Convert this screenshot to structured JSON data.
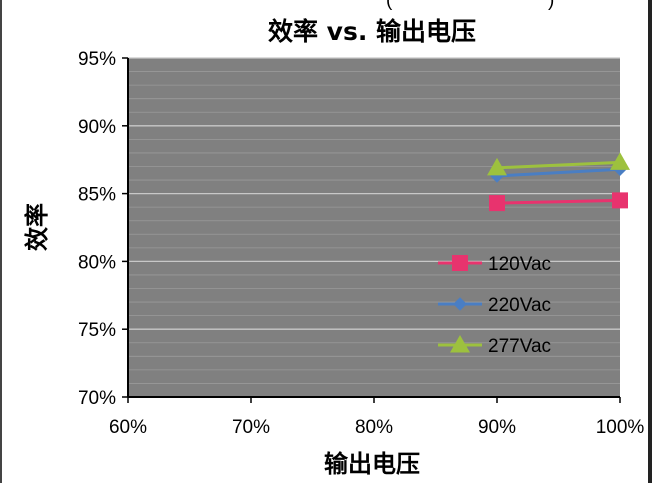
{
  "chart_data": {
    "type": "line",
    "title": "效率 vs. 输出电压",
    "xlabel": "输出电压",
    "ylabel": "效率",
    "xlim": [
      60,
      100
    ],
    "ylim": [
      70,
      95
    ],
    "x_ticks": [
      "60%",
      "70%",
      "80%",
      "90%",
      "100%"
    ],
    "y_ticks": [
      "95%",
      "90%",
      "85%",
      "80%",
      "75%",
      "70%"
    ],
    "x_tick_values": [
      60,
      70,
      80,
      90,
      100
    ],
    "y_tick_values": [
      95,
      90,
      85,
      80,
      75,
      70
    ],
    "grid": true,
    "legend_position": "bottom-right",
    "plot_background": "#808080",
    "series": [
      {
        "name": "120Vac",
        "color": "#e8336e",
        "marker": "square",
        "x": [
          90,
          100
        ],
        "y": [
          84.3,
          84.5
        ]
      },
      {
        "name": "220Vac",
        "color": "#4a7ec3",
        "marker": "diamond",
        "x": [
          90,
          100
        ],
        "y": [
          86.3,
          86.8
        ]
      },
      {
        "name": "277Vac",
        "color": "#9dc13e",
        "marker": "triangle",
        "x": [
          90,
          100
        ],
        "y": [
          86.9,
          87.3
        ]
      }
    ]
  },
  "top_fragment": "(",
  "top_fragment_right": ")"
}
